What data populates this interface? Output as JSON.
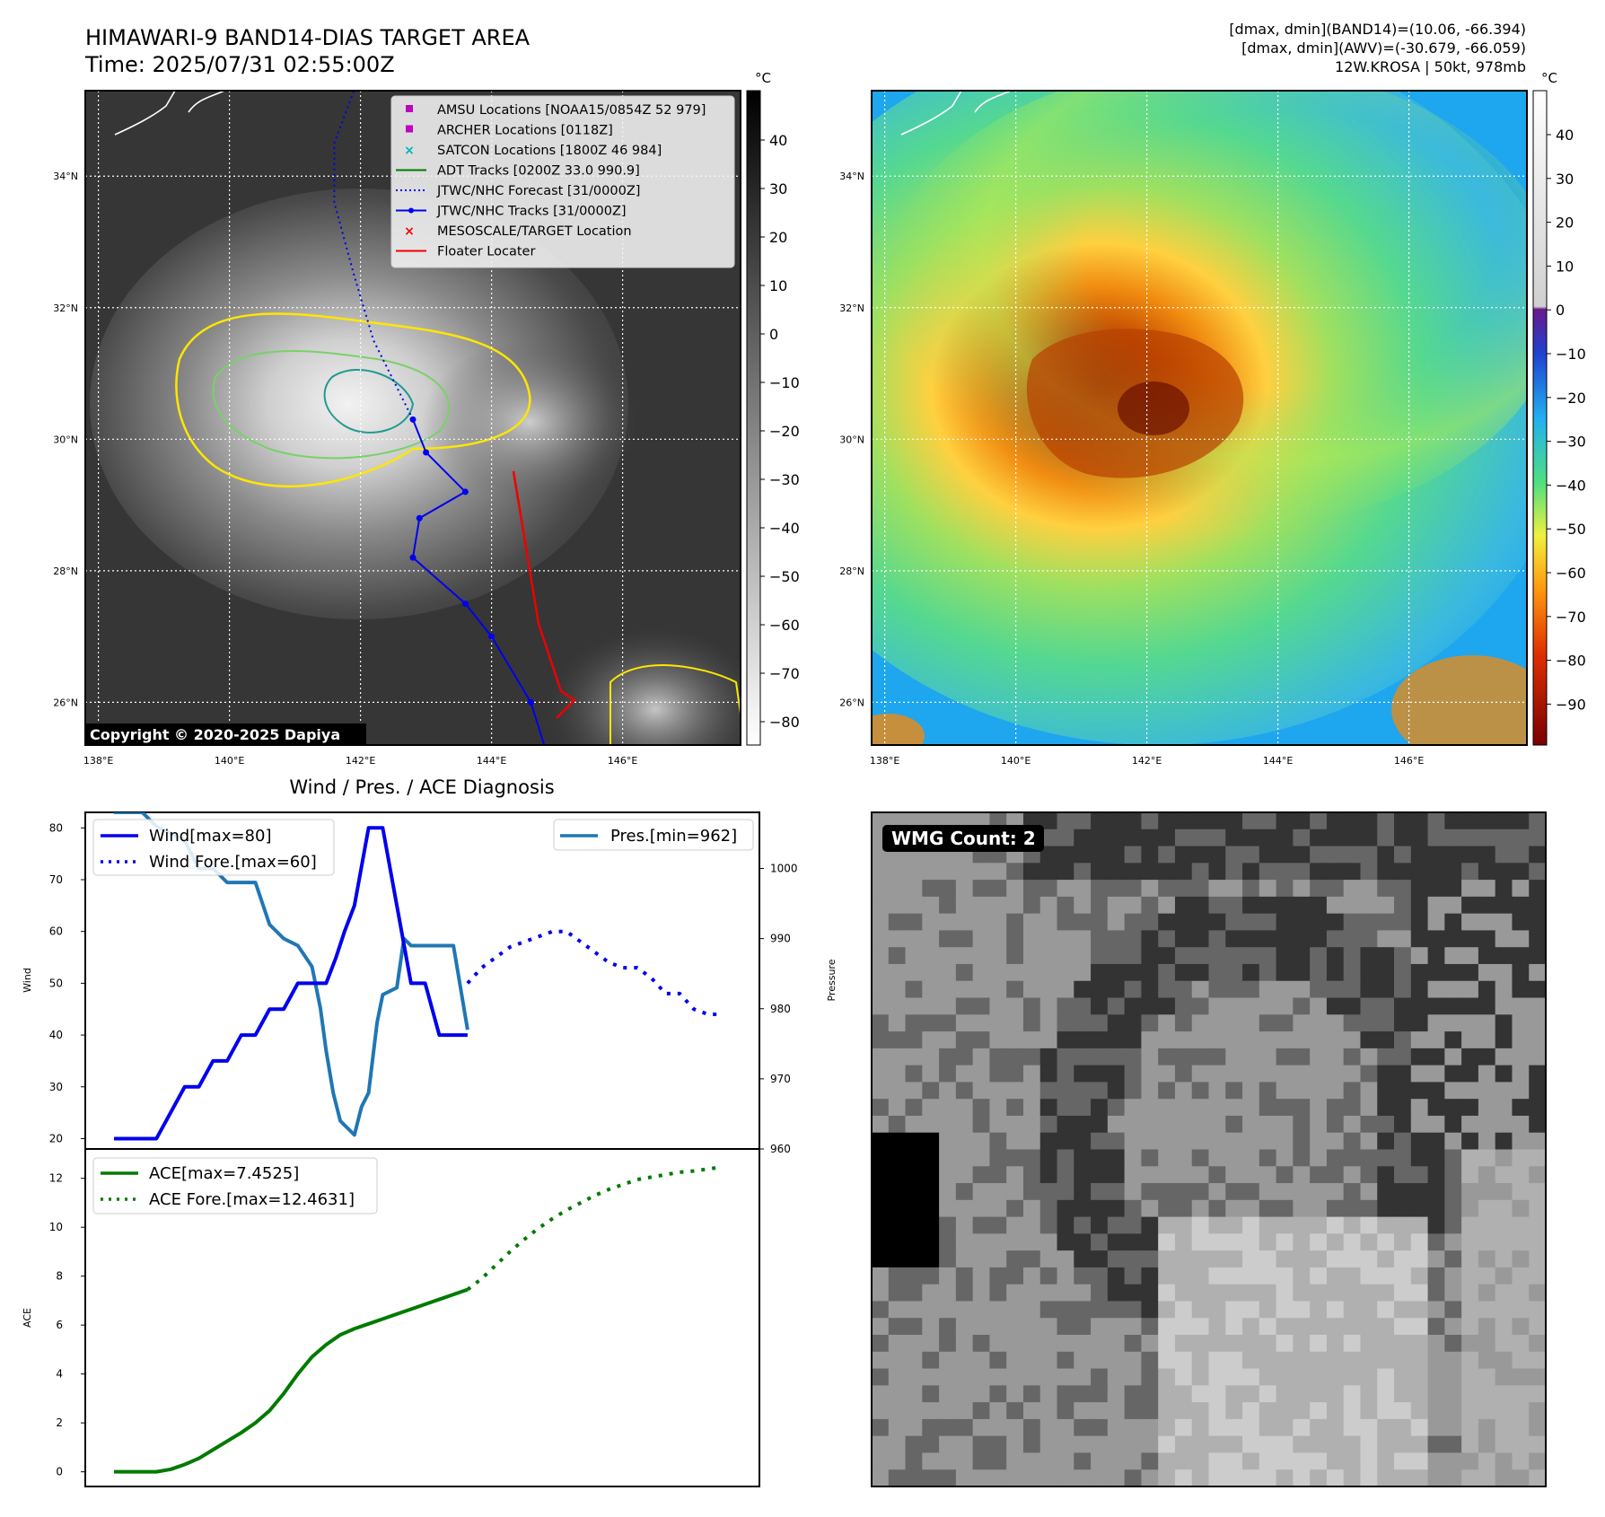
{
  "title": {
    "line1": "HIMAWARI-9 BAND14-DIAS TARGET AREA",
    "line2": "Time: 2025/07/31 02:55:00Z"
  },
  "info": {
    "line1": "[dmax, dmin](BAND14)=(10.06, -66.394)",
    "line2": "[dmax, dmin](AWV)=(-30.679, -66.059)",
    "line3": "12W.KROSA | 50kt, 978mb"
  },
  "copyright": "Copyright © 2020-2025 Dapiya",
  "map": {
    "lon_ticks": [
      "138°E",
      "140°E",
      "142°E",
      "144°E",
      "146°E"
    ],
    "lat_ticks": [
      "34°N",
      "32°N",
      "30°N",
      "28°N",
      "26°N"
    ],
    "lon_values": [
      138,
      140,
      142,
      144,
      146
    ],
    "lat_values": [
      34,
      32,
      30,
      28,
      26
    ],
    "lon_range": [
      137.8,
      147.8
    ],
    "lat_range": [
      25.35,
      35.3
    ],
    "legend": [
      {
        "label": "AMSU Locations [NOAA15/0854Z 52 979]",
        "marker": "square",
        "color": "#c000c0"
      },
      {
        "label": "ARCHER Locations [0118Z]",
        "marker": "square",
        "color": "#c000c0"
      },
      {
        "label": "SATCON Locations [1800Z 46 984]",
        "marker": "x",
        "color": "#00b5b5"
      },
      {
        "label": "ADT Tracks [0200Z 33.0 990.9]",
        "marker": "line",
        "color": "#007a00"
      },
      {
        "label": "JTWC/NHC Forecast [31/0000Z]",
        "marker": "dotted",
        "color": "#0000ee"
      },
      {
        "label": "JTWC/NHC Tracks [31/0000Z]",
        "marker": "line-dot",
        "color": "#0000ee"
      },
      {
        "label": "MESOSCALE/TARGET Location",
        "marker": "x",
        "color": "#ee0000"
      },
      {
        "label": "Floater Locater",
        "marker": "line",
        "color": "#ee0000"
      }
    ],
    "colorbar1": {
      "unit": "°C",
      "ticks": [
        "40",
        "30",
        "20",
        "10",
        "0",
        "−10",
        "−20",
        "−30",
        "−40",
        "−50",
        "−60",
        "−70",
        "−80"
      ]
    },
    "colorbar2": {
      "unit": "°C",
      "ticks": [
        "40",
        "30",
        "20",
        "10",
        "0",
        "−10",
        "−20",
        "−30",
        "−40",
        "−50",
        "−60",
        "−70",
        "−80",
        "−90"
      ]
    },
    "jtwc_track": [
      [
        144.85,
        25.2
      ],
      [
        144.6,
        26.0
      ],
      [
        144.0,
        27.0
      ],
      [
        143.6,
        27.5
      ],
      [
        142.8,
        28.2
      ],
      [
        142.9,
        28.8
      ],
      [
        143.6,
        29.2
      ],
      [
        143.0,
        29.8
      ],
      [
        142.8,
        30.3
      ]
    ],
    "jtwc_forecast": [
      [
        142.8,
        30.3
      ],
      [
        142.2,
        31.5
      ],
      [
        141.9,
        32.5
      ],
      [
        141.6,
        33.6
      ],
      [
        141.6,
        34.5
      ],
      [
        141.9,
        35.3
      ]
    ]
  },
  "chart_data": [
    {
      "type": "line",
      "title": "Wind / Pres. / ACE Diagnosis",
      "ylabel": "Wind",
      "ylim": [
        18,
        83
      ],
      "y_ticks": [
        20,
        30,
        40,
        50,
        60,
        70,
        80
      ],
      "series": [
        {
          "name": "Wind[max=80]",
          "style": "solid",
          "color": "#0000ee",
          "x": [
            0,
            3,
            5,
            6,
            7,
            8,
            9,
            10,
            11,
            12,
            13,
            14,
            15,
            15.7,
            16.3,
            17,
            18,
            19,
            20,
            21,
            22,
            23,
            24,
            25
          ],
          "values": [
            20,
            20,
            30,
            30,
            35,
            35,
            40,
            40,
            45,
            45,
            50,
            50,
            50,
            55,
            60,
            65,
            80,
            80,
            65,
            50,
            50,
            40,
            40,
            40
          ]
        },
        {
          "name": "Wind Fore.[max=60]",
          "style": "dotted",
          "color": "#0000ee",
          "x": [
            25,
            26,
            27,
            28,
            29,
            30,
            31,
            32,
            33,
            34,
            35,
            36,
            37,
            38,
            39,
            40,
            41,
            42,
            43
          ],
          "values": [
            50,
            53,
            55,
            57,
            58,
            59,
            60,
            60,
            58,
            56,
            54,
            53,
            53,
            51,
            48,
            48,
            45,
            44,
            44
          ]
        }
      ]
    },
    {
      "type": "line",
      "ylabel": "Pressure",
      "ylim": [
        960,
        1008
      ],
      "y_ticks": [
        960,
        970,
        980,
        990,
        1000
      ],
      "series": [
        {
          "name": "Pres.[min=962]",
          "style": "solid",
          "color": "#1f77b4",
          "x": [
            0,
            1,
            2,
            3,
            4,
            5,
            6,
            7,
            8,
            9,
            10,
            11,
            12,
            13,
            14,
            14.6,
            15,
            15.5,
            16,
            17,
            17.5,
            18,
            18.6,
            19,
            20,
            20.5,
            21,
            22,
            23,
            24,
            25
          ],
          "values": [
            1008,
            1008,
            1008,
            1006,
            1005,
            1004,
            1000,
            1000,
            998,
            998,
            998,
            992,
            990,
            989,
            986,
            980,
            974,
            968,
            964,
            962,
            966,
            968,
            978,
            982,
            983,
            990,
            989,
            989,
            989,
            989,
            977
          ]
        }
      ]
    },
    {
      "type": "line",
      "ylabel": "ACE",
      "ylim": [
        -0.6,
        13.2
      ],
      "y_ticks": [
        0,
        2,
        4,
        6,
        8,
        10,
        12
      ],
      "series": [
        {
          "name": "ACE[max=7.4525]",
          "style": "solid",
          "color": "#007a00",
          "x": [
            0,
            1,
            2,
            3,
            4,
            5,
            6,
            7,
            8,
            9,
            10,
            11,
            12,
            13,
            14,
            15,
            16,
            17,
            18,
            19,
            20,
            21,
            22,
            23,
            24,
            25
          ],
          "values": [
            0,
            0,
            0,
            0,
            0.1,
            0.3,
            0.55,
            0.9,
            1.25,
            1.6,
            2.0,
            2.5,
            3.2,
            4.0,
            4.7,
            5.2,
            5.6,
            5.85,
            6.05,
            6.25,
            6.45,
            6.65,
            6.85,
            7.05,
            7.25,
            7.4525
          ]
        },
        {
          "name": "ACE Fore.[max=12.4631]",
          "style": "dotted",
          "color": "#007a00",
          "x": [
            25,
            26,
            27,
            28,
            29,
            30,
            31,
            32,
            33,
            34,
            35,
            36,
            37,
            38,
            39,
            40,
            41,
            42,
            43
          ],
          "values": [
            7.45,
            7.9,
            8.45,
            9.0,
            9.5,
            9.95,
            10.35,
            10.7,
            11.0,
            11.3,
            11.55,
            11.75,
            11.95,
            12.05,
            12.15,
            12.25,
            12.3,
            12.38,
            12.4631
          ]
        }
      ]
    }
  ],
  "wmg": {
    "label": "WMG Count: 2"
  }
}
